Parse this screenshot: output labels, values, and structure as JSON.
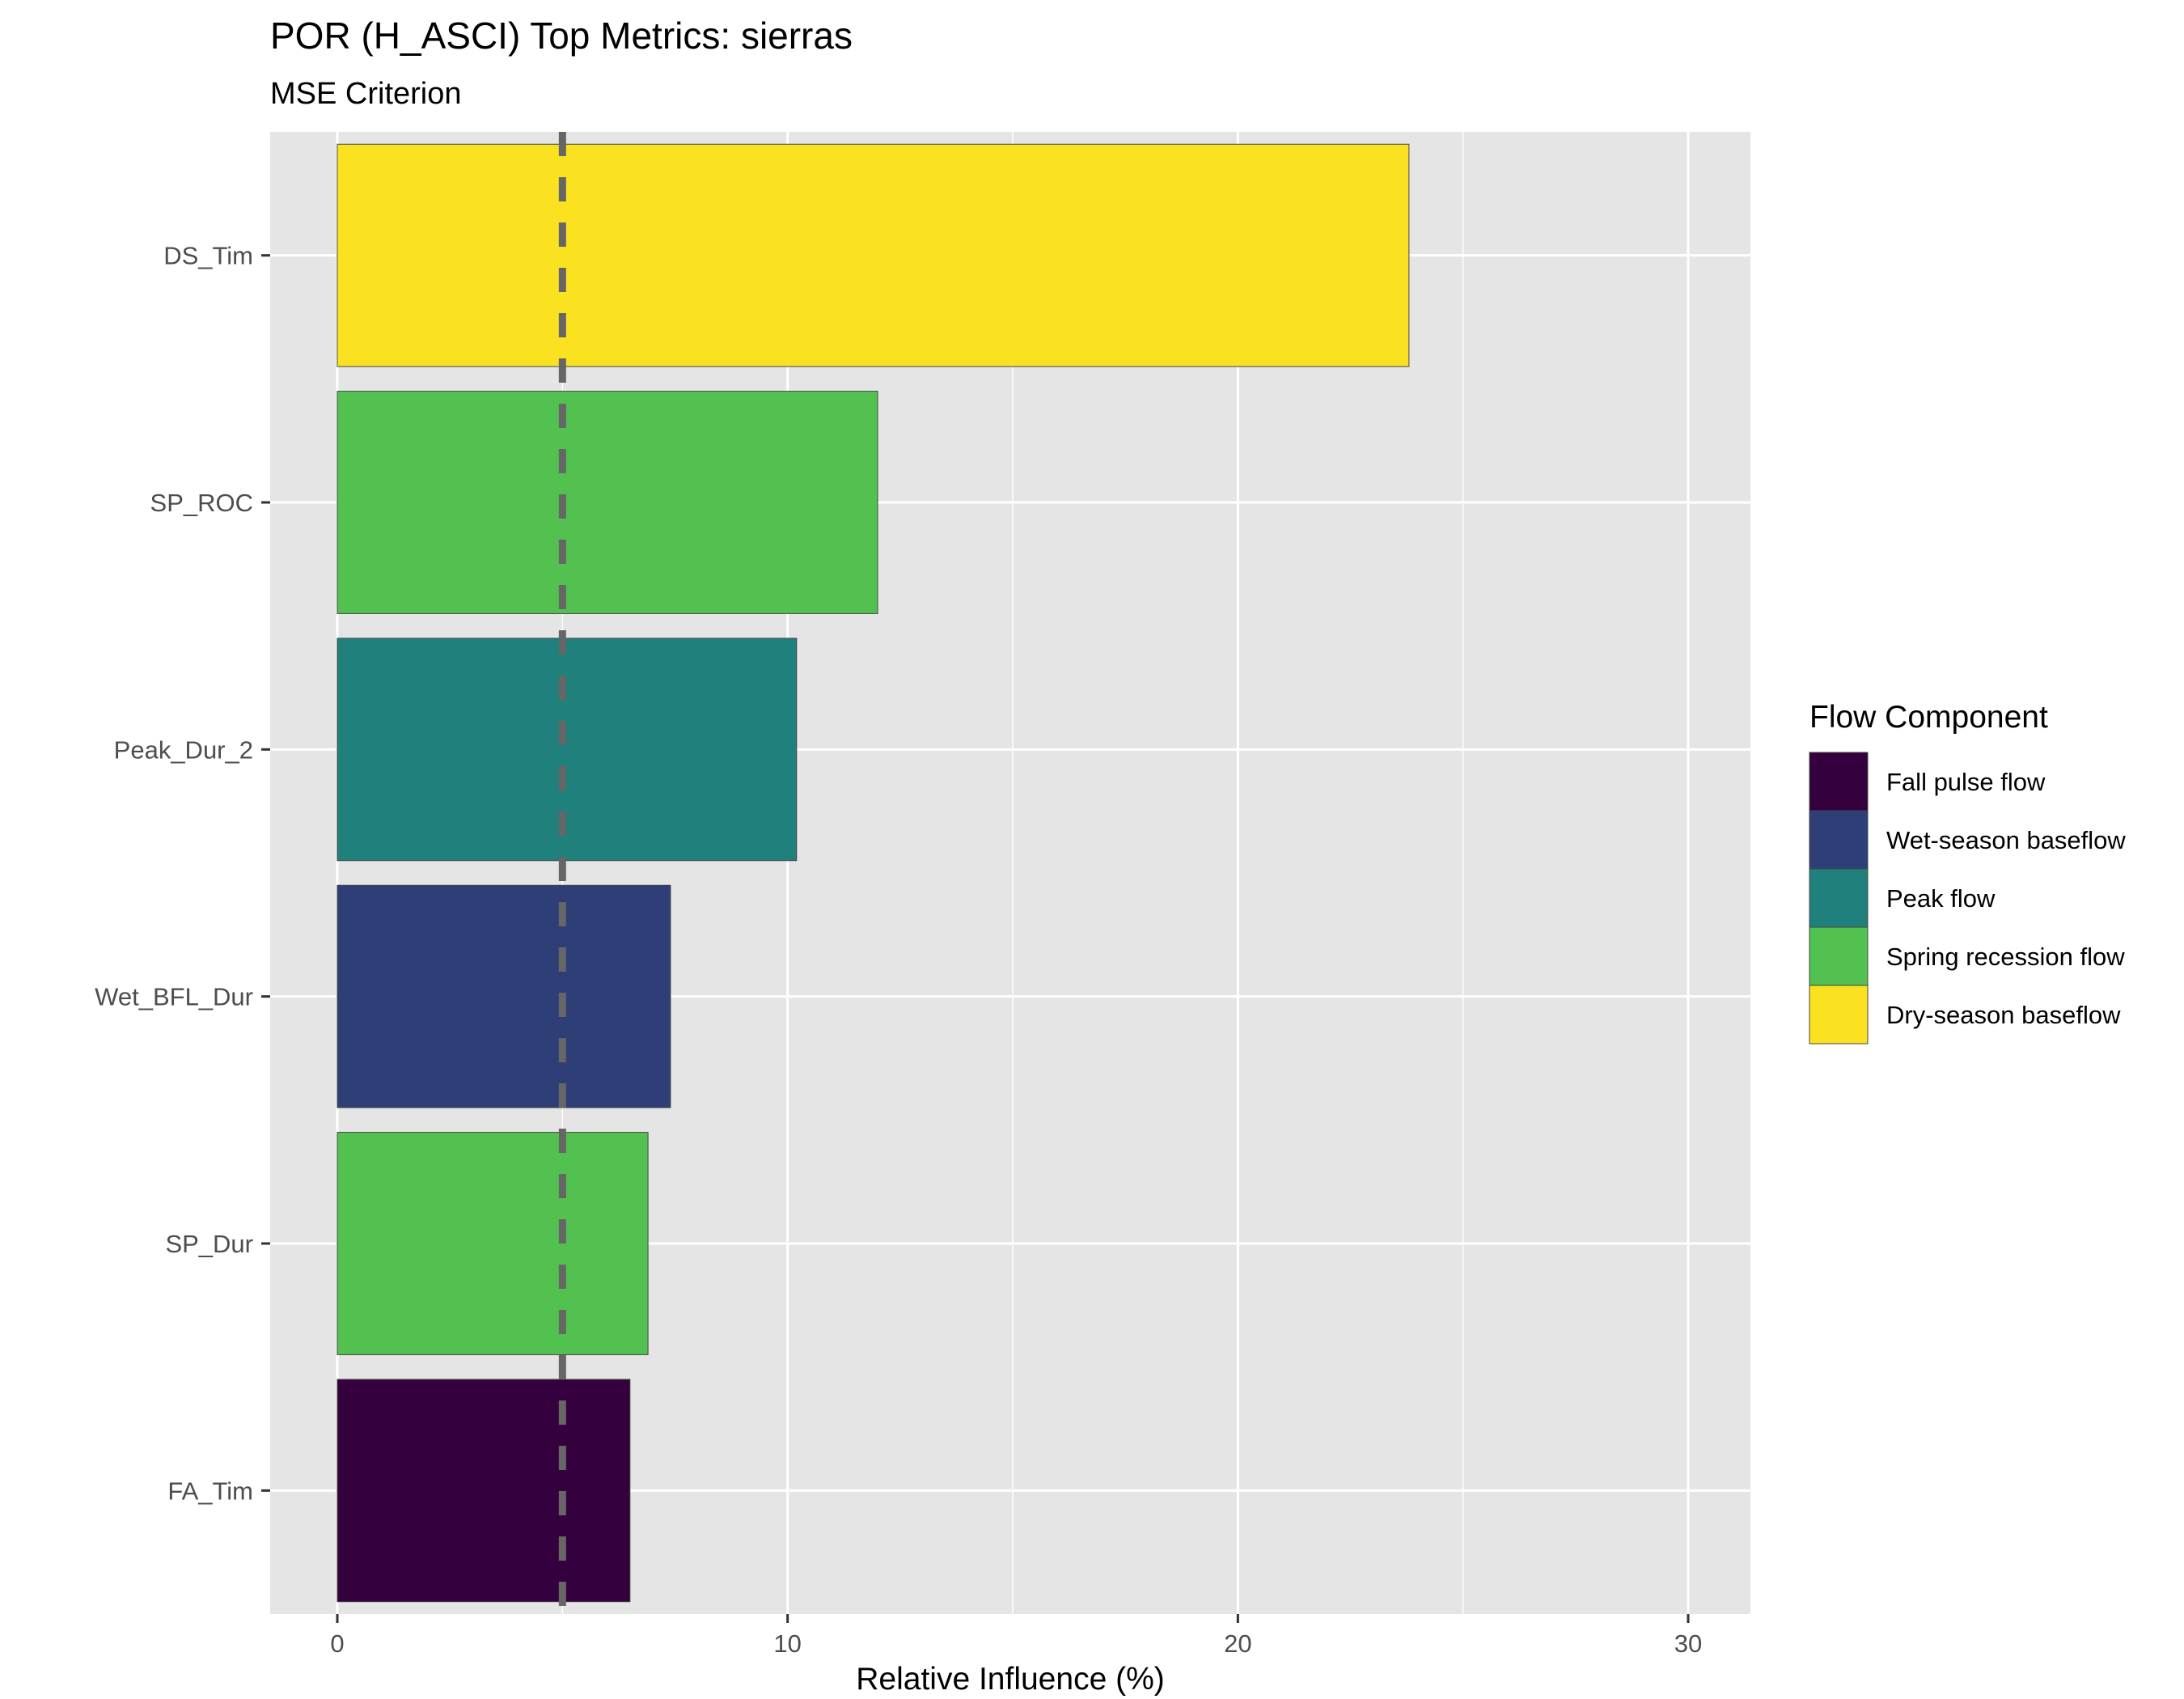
{
  "chart_data": {
    "type": "bar",
    "orientation": "horizontal",
    "title": "POR (H_ASCI) Top Metrics: sierras",
    "subtitle": "MSE Criterion",
    "xlabel": "Relative Influence (%)",
    "ylabel": "",
    "xlim": [
      0,
      31.5
    ],
    "x_ticks": [
      0,
      10,
      20,
      30
    ],
    "grid": true,
    "reference_line": {
      "x": 5,
      "style": "dashed",
      "color": "#666666"
    },
    "categories": [
      "DS_Tim",
      "SP_ROC",
      "Peak_Dur_2",
      "Wet_BFL_Dur",
      "SP_Dur",
      "FA_Tim"
    ],
    "values": [
      23.8,
      12.0,
      10.2,
      7.4,
      6.9,
      6.5
    ],
    "bar_groups": [
      "Dry-season baseflow",
      "Spring recession flow",
      "Peak flow",
      "Wet-season baseflow",
      "Spring recession flow",
      "Fall pulse flow"
    ],
    "legend": {
      "title": "Flow Component",
      "position": "right",
      "entries": [
        {
          "label": "Fall pulse flow",
          "color": "#35003e"
        },
        {
          "label": "Wet-season baseflow",
          "color": "#2e3f78"
        },
        {
          "label": "Peak flow",
          "color": "#20807c"
        },
        {
          "label": "Spring recession flow",
          "color": "#52c150"
        },
        {
          "label": "Dry-season baseflow",
          "color": "#fbe220"
        }
      ]
    },
    "colors": {
      "panel_bg": "#e5e5e5",
      "grid": "#ffffff",
      "bar_outline": "#444444"
    }
  }
}
